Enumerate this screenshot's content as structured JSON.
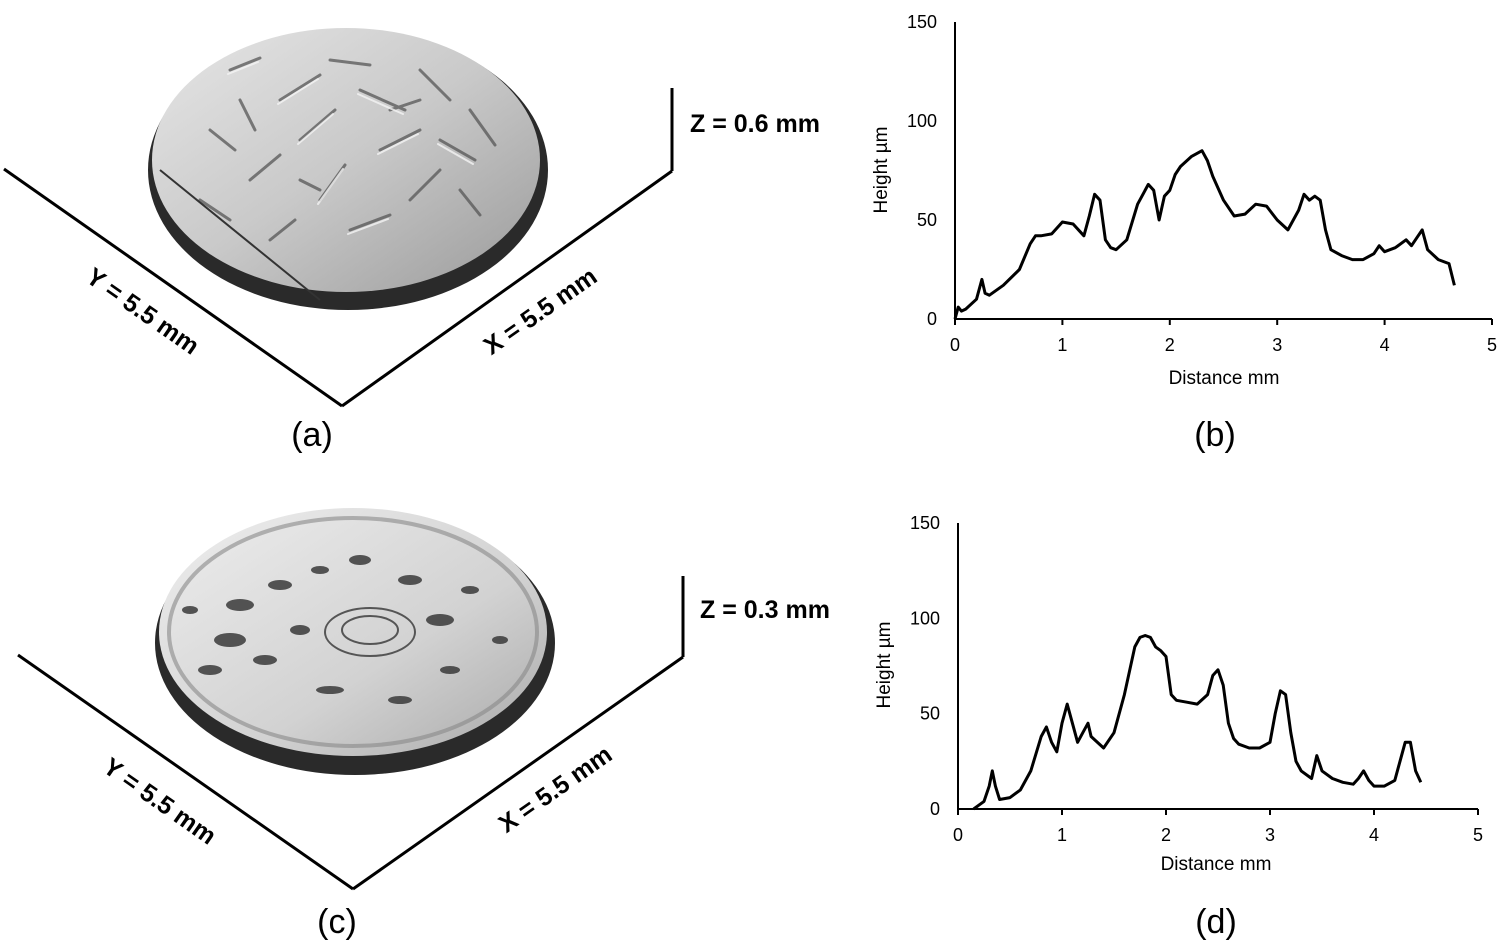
{
  "panels": {
    "a": {
      "label": "(a)",
      "z_label": "Z = 0.6 mm",
      "x_label": "X = 5.5 mm",
      "y_label": "Y = 5.5 mm"
    },
    "b": {
      "label": "(b)"
    },
    "c": {
      "label": "(c)",
      "z_label": "Z = 0.3 mm",
      "x_label": "X = 5.5 mm",
      "y_label": "Y = 5.5 mm"
    },
    "d": {
      "label": "(d)"
    }
  },
  "chart_data": [
    {
      "type": "line",
      "panel": "b",
      "xlabel": "Distance mm",
      "ylabel": "Height µm",
      "xlim": [
        0,
        5
      ],
      "ylim": [
        0,
        150
      ],
      "xticks": [
        "0",
        "1",
        "2",
        "3",
        "4",
        "5"
      ],
      "yticks": [
        "0",
        "50",
        "100",
        "150"
      ],
      "grid": false,
      "color": "#000000",
      "x": [
        0,
        0.03,
        0.06,
        0.1,
        0.2,
        0.25,
        0.28,
        0.32,
        0.45,
        0.6,
        0.7,
        0.75,
        0.8,
        0.9,
        1.0,
        1.1,
        1.2,
        1.25,
        1.3,
        1.35,
        1.4,
        1.45,
        1.5,
        1.6,
        1.7,
        1.8,
        1.85,
        1.9,
        1.95,
        2.0,
        2.05,
        2.1,
        2.2,
        2.3,
        2.35,
        2.4,
        2.5,
        2.6,
        2.7,
        2.8,
        2.9,
        3.0,
        3.1,
        3.2,
        3.25,
        3.3,
        3.35,
        3.4,
        3.45,
        3.5,
        3.6,
        3.7,
        3.8,
        3.9,
        3.95,
        4.0,
        4.1,
        4.2,
        4.25,
        4.3,
        4.35,
        4.4,
        4.5,
        4.6,
        4.65
      ],
      "y": [
        0,
        6,
        4,
        5,
        10,
        20,
        13,
        12,
        17,
        25,
        38,
        42,
        42,
        43,
        49,
        48,
        42,
        52,
        63,
        60,
        40,
        36,
        35,
        40,
        58,
        68,
        65,
        50,
        62,
        65,
        73,
        77,
        82,
        85,
        80,
        72,
        60,
        52,
        53,
        58,
        57,
        50,
        45,
        55,
        63,
        60,
        62,
        60,
        45,
        35,
        32,
        30,
        30,
        33,
        37,
        34,
        36,
        40,
        37,
        41,
        45,
        35,
        30,
        28,
        17
      ]
    },
    {
      "type": "line",
      "panel": "d",
      "xlabel": "Distance mm",
      "ylabel": "Height µm",
      "xlim": [
        0,
        5
      ],
      "ylim": [
        0,
        150
      ],
      "xticks": [
        "0",
        "1",
        "2",
        "3",
        "4",
        "5"
      ],
      "yticks": [
        "0",
        "50",
        "100",
        "150"
      ],
      "grid": false,
      "color": "#000000",
      "x": [
        0.15,
        0.2,
        0.25,
        0.3,
        0.33,
        0.36,
        0.4,
        0.5,
        0.6,
        0.7,
        0.8,
        0.85,
        0.9,
        0.95,
        1.0,
        1.05,
        1.1,
        1.15,
        1.2,
        1.25,
        1.28,
        1.32,
        1.4,
        1.5,
        1.6,
        1.7,
        1.75,
        1.8,
        1.85,
        1.9,
        1.95,
        2.0,
        2.05,
        2.1,
        2.2,
        2.3,
        2.4,
        2.45,
        2.5,
        2.55,
        2.6,
        2.65,
        2.7,
        2.8,
        2.9,
        3.0,
        3.05,
        3.1,
        3.15,
        3.2,
        3.25,
        3.3,
        3.4,
        3.45,
        3.5,
        3.6,
        3.7,
        3.8,
        3.85,
        3.9,
        3.95,
        4.0,
        4.1,
        4.2,
        4.25,
        4.3,
        4.35,
        4.4,
        4.45
      ],
      "y": [
        0,
        2,
        4,
        12,
        20,
        12,
        5,
        6,
        10,
        20,
        38,
        43,
        35,
        30,
        45,
        55,
        45,
        35,
        40,
        45,
        38,
        36,
        32,
        40,
        60,
        85,
        90,
        91,
        90,
        85,
        83,
        80,
        60,
        57,
        56,
        55,
        60,
        70,
        73,
        65,
        45,
        37,
        34,
        32,
        32,
        35,
        50,
        62,
        60,
        40,
        25,
        20,
        16,
        28,
        20,
        16,
        14,
        13,
        16,
        20,
        15,
        12,
        12,
        15,
        25,
        35,
        35,
        20,
        14
      ]
    }
  ]
}
